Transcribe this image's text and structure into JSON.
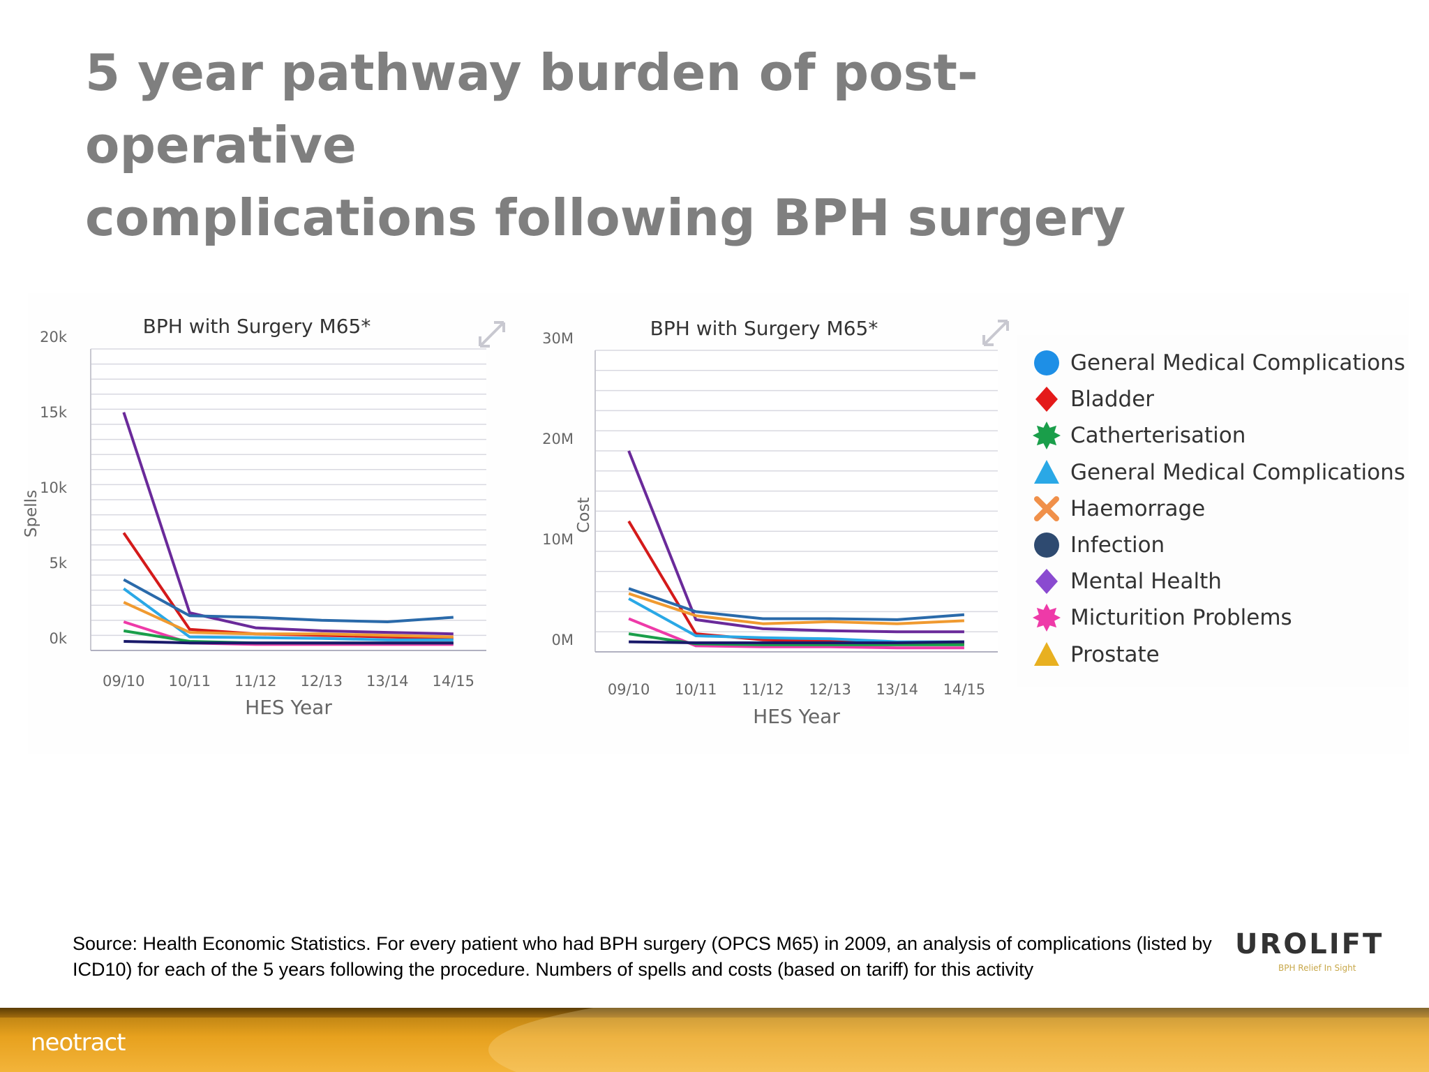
{
  "slide": {
    "title_line1": "5 year pathway burden of post-operative",
    "title_line2": "complications following BPH surgery",
    "source": "Source: Health Economic Statistics. For every patient who had BPH surgery (OPCS M65) in 2009, an analysis of complications (listed by ICD10) for each of the 5 years following the procedure. Numbers of spells and costs (based on tariff) for this activity",
    "logo_right": "UROLIFT",
    "logo_right_tagline": "BPH Relief In Sight",
    "logo_left": "neotract"
  },
  "legend": [
    {
      "name": "General Medical Complications",
      "marker": "circle",
      "color": "#1e8fe6"
    },
    {
      "name": "Bladder",
      "marker": "diamond",
      "color": "#e41a1a"
    },
    {
      "name": "Catherterisation",
      "marker": "star",
      "color": "#1a9e4a"
    },
    {
      "name": "General Medical Complications",
      "marker": "triangle",
      "color": "#2aa8e6"
    },
    {
      "name": "Haemorrage",
      "marker": "x",
      "color": "#f0904a"
    },
    {
      "name": "Infection",
      "marker": "circle",
      "color": "#2e4a70"
    },
    {
      "name": "Mental Health",
      "marker": "diamond",
      "color": "#8a4ad0"
    },
    {
      "name": "Micturition Problems",
      "marker": "star",
      "color": "#ee3aa8"
    },
    {
      "name": "Prostate",
      "marker": "triangle",
      "color": "#e8b020"
    }
  ],
  "chart_data": [
    {
      "type": "line",
      "title": "BPH with Surgery M65*",
      "xlabel": "HES Year",
      "ylabel": "Spells",
      "categories": [
        "09/10",
        "10/11",
        "11/12",
        "12/13",
        "13/14",
        "14/15"
      ],
      "ylim": [
        0,
        20000
      ],
      "yticks": [
        0,
        5000,
        10000,
        15000,
        20000
      ],
      "ytick_labels": [
        "0k",
        "5k",
        "10k",
        "15k",
        "20k"
      ],
      "grid": true,
      "series": [
        {
          "color": "#6a2a9a",
          "values": [
            15800,
            2500,
            1500,
            1300,
            1200,
            1100
          ]
        },
        {
          "color": "#d41a1a",
          "values": [
            7800,
            1400,
            1100,
            1000,
            900,
            800
          ]
        },
        {
          "color": "#2a6aaa",
          "values": [
            4700,
            2300,
            2200,
            2000,
            1900,
            2200
          ]
        },
        {
          "color": "#2aa8e6",
          "values": [
            4100,
            900,
            850,
            800,
            700,
            700
          ]
        },
        {
          "color": "#f09a30",
          "values": [
            3200,
            1200,
            1100,
            1100,
            1000,
            900
          ]
        },
        {
          "color": "#ee3aa8",
          "values": [
            1900,
            500,
            400,
            400,
            400,
            400
          ]
        },
        {
          "color": "#1a9e4a",
          "values": [
            1300,
            600,
            500,
            500,
            500,
            500
          ]
        },
        {
          "color": "#1a1a6a",
          "values": [
            600,
            500,
            500,
            500,
            500,
            500
          ]
        }
      ]
    },
    {
      "type": "line",
      "title": "BPH with Surgery M65*",
      "xlabel": "HES Year",
      "ylabel": "Cost",
      "categories": [
        "09/10",
        "10/11",
        "11/12",
        "12/13",
        "13/14",
        "14/15"
      ],
      "ylim": [
        0,
        30000000
      ],
      "yticks": [
        0,
        10000000,
        20000000,
        30000000
      ],
      "ytick_labels": [
        "0M",
        "10M",
        "20M",
        "30M"
      ],
      "grid": true,
      "series": [
        {
          "color": "#6a2a9a",
          "values": [
            20000000,
            3200000,
            2300000,
            2100000,
            2000000,
            2000000
          ]
        },
        {
          "color": "#d41a1a",
          "values": [
            13000000,
            1800000,
            1200000,
            1100000,
            900000,
            800000
          ]
        },
        {
          "color": "#2a6aaa",
          "values": [
            6300000,
            4000000,
            3300000,
            3300000,
            3200000,
            3700000
          ]
        },
        {
          "color": "#f09a30",
          "values": [
            5800000,
            3600000,
            2800000,
            3000000,
            2800000,
            3100000
          ]
        },
        {
          "color": "#2aa8e6",
          "values": [
            5300000,
            1600000,
            1400000,
            1300000,
            1000000,
            1000000
          ]
        },
        {
          "color": "#ee3aa8",
          "values": [
            3300000,
            600000,
            500000,
            500000,
            400000,
            400000
          ]
        },
        {
          "color": "#1a9e4a",
          "values": [
            1800000,
            800000,
            700000,
            700000,
            700000,
            700000
          ]
        },
        {
          "color": "#1a1a6a",
          "values": [
            1000000,
            900000,
            900000,
            900000,
            900000,
            1000000
          ]
        }
      ]
    }
  ]
}
